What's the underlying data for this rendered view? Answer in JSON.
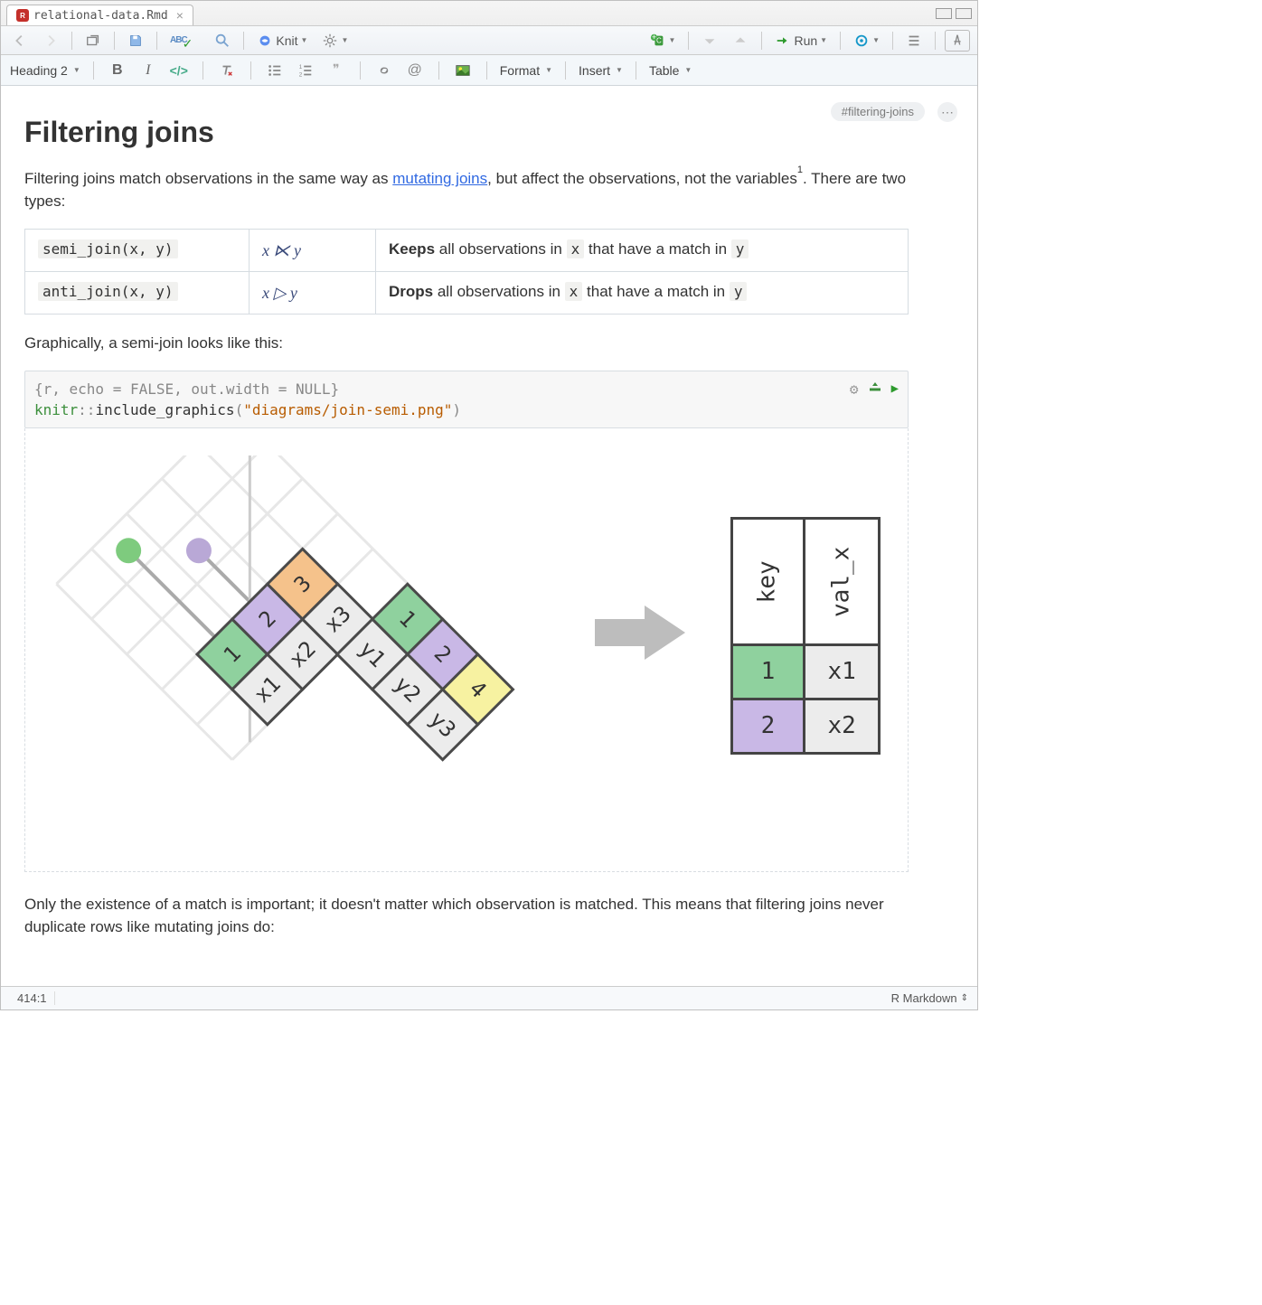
{
  "tab": {
    "title": "relational-data.Rmd"
  },
  "toolbar1": {
    "knit_label": "Knit",
    "run_label": "Run"
  },
  "fmtbar": {
    "heading": "Heading 2",
    "format_label": "Format",
    "insert_label": "Insert",
    "table_label": "Table"
  },
  "doc": {
    "hash": "#filtering-joins",
    "title": "Filtering joins",
    "intro_1a": "Filtering joins match observations in the same way as ",
    "intro_link": "mutating joins",
    "intro_1b": ", but affect the observations, not the variables",
    "intro_1c": ". There are two types:",
    "graph_line": "Graphically, a semi-join looks like this:",
    "closing": "Only the existence of a match is important; it doesn't matter which observation is matched. This means that filtering joins never duplicate rows like mutating joins do:"
  },
  "join_table": {
    "rows": [
      {
        "code": "semi_join(x, y)",
        "math": "x ⋉ y",
        "strong": "Keeps",
        "text_a": " all observations in ",
        "x": "x",
        "mid": " that have a match in ",
        "y": "y"
      },
      {
        "code": "anti_join(x, y)",
        "math": "x ▷ y",
        "strong": "Drops",
        "text_a": " all observations in ",
        "x": "x",
        "mid": " that have a match in ",
        "y": "y"
      }
    ]
  },
  "chunk": {
    "header": "{r, echo = FALSE, out.width = NULL}",
    "pkg": "knitr",
    "sep": "::",
    "fn": "include_graphics",
    "open": "(",
    "str": "\"diagrams/join-semi.png\"",
    "close": ")"
  },
  "diagram": {
    "left_table": {
      "keys": [
        "1",
        "2",
        "3"
      ],
      "vals": [
        "x1",
        "x2",
        "x3"
      ],
      "key_colors": [
        "#8fd19e",
        "#c9b8e6",
        "#f5c28b"
      ]
    },
    "right_table": {
      "keys": [
        "1",
        "2",
        "4"
      ],
      "vals": [
        "y1",
        "y2",
        "y3"
      ],
      "key_colors": [
        "#8fd19e",
        "#c9b8e6",
        "#f7f2a1"
      ]
    },
    "dot_colors": [
      "#7ecb7e",
      "#b9a8d6"
    ],
    "result": {
      "headers": [
        "key",
        "val_x"
      ],
      "rows": [
        {
          "k": "1",
          "v": "x1",
          "c": "#8fd19e"
        },
        {
          "k": "2",
          "v": "x2",
          "c": "#c9b8e6"
        }
      ]
    },
    "grid_color": "#e7e7e7",
    "cell_stroke": "#4a4a4a",
    "cell_fill": "#ececec",
    "arrow_color": "#bdbdbd"
  },
  "status": {
    "pos": "414:1",
    "lang": "R Markdown"
  }
}
